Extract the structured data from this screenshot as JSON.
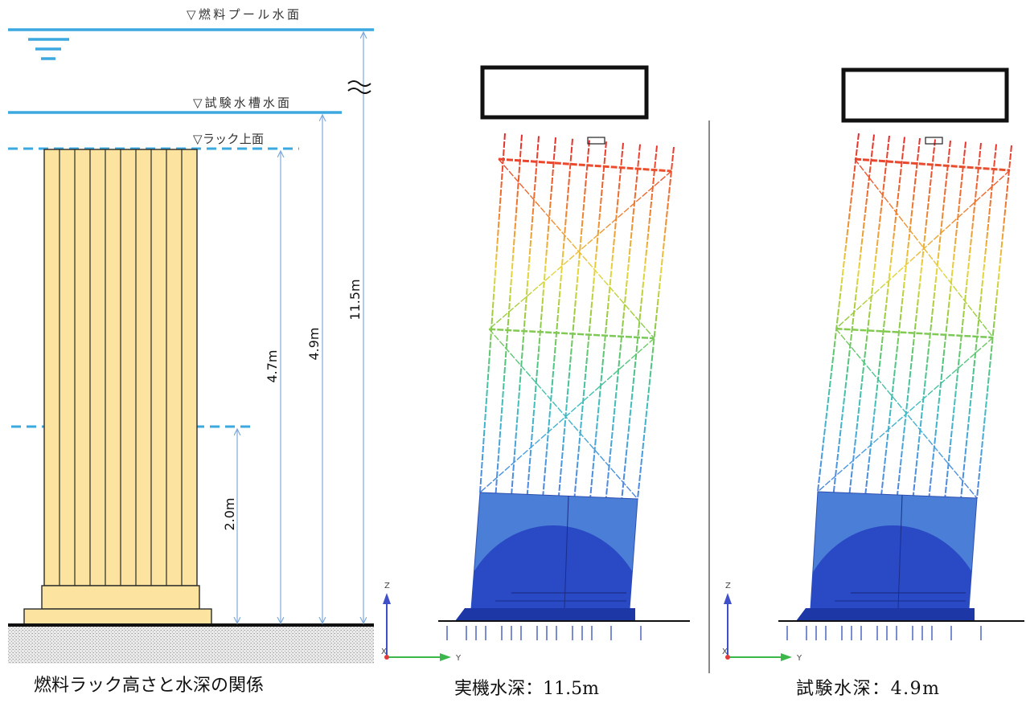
{
  "schematic": {
    "pool_surface_label": "▽燃料プール水面",
    "test_tank_surface_label": "▽試験水槽水面",
    "rack_top_label": "▽ラック上面",
    "dimensions": {
      "lower_level": "2.0m",
      "rack_top": "4.7m",
      "test_tank_surface": "4.9m",
      "pool_surface": "11.5m"
    },
    "caption": "燃料ラック高さと水深の関係"
  },
  "panels": [
    {
      "caption": "実機水深：11.5m",
      "axes": {
        "z": "Z",
        "y": "Y",
        "x": "X"
      }
    },
    {
      "caption": "試験水深：4.9m",
      "axes": {
        "z": "Z",
        "y": "Y",
        "x": "X"
      }
    }
  ],
  "colors": {
    "water_line": "#3BA9E0",
    "rack_fill": "#FCE4A0",
    "dimension_line": "#7FA9DA",
    "contour": [
      "#E5262B",
      "#EC5A2E",
      "#EE9133",
      "#E7D63B",
      "#9ACB3E",
      "#4FC57E",
      "#3FBCC4",
      "#4A9BE0",
      "#4F7FDC"
    ],
    "block_light": "#4B7ED7",
    "block_dark": "#2A49C4",
    "base_plate": "#1E37A6"
  }
}
